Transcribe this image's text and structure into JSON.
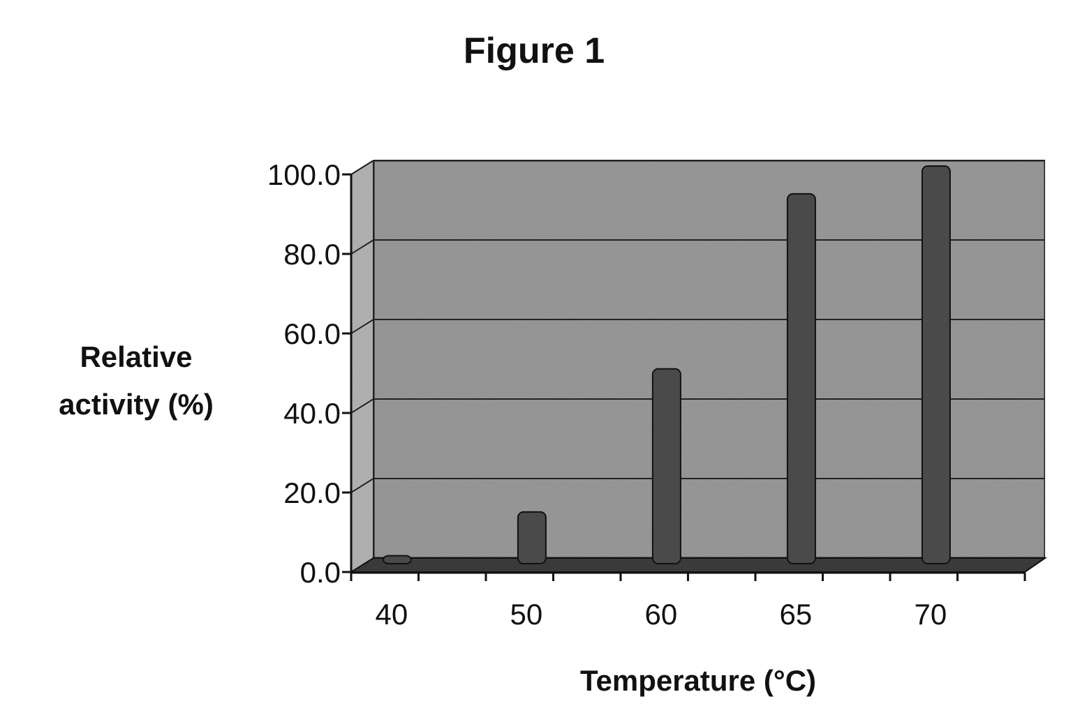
{
  "chart_data": {
    "type": "bar",
    "title": "Figure 1",
    "y_label": "Relative activity (%)",
    "x_label": "Temperature (°C)",
    "categories": [
      "40",
      "50",
      "60",
      "65",
      "70"
    ],
    "values": [
      2,
      13,
      49,
      93,
      100
    ],
    "color": "#4a4a4a",
    "ylim": [
      0,
      100
    ],
    "yticks": [
      {
        "value": 0,
        "label": "0.0"
      },
      {
        "value": 20,
        "label": "20.0"
      },
      {
        "value": 40,
        "label": "40.0"
      },
      {
        "value": 60,
        "label": "60.0"
      },
      {
        "value": 80,
        "label": "80.0"
      },
      {
        "value": 100,
        "label": "100.0"
      }
    ],
    "grid": true
  }
}
